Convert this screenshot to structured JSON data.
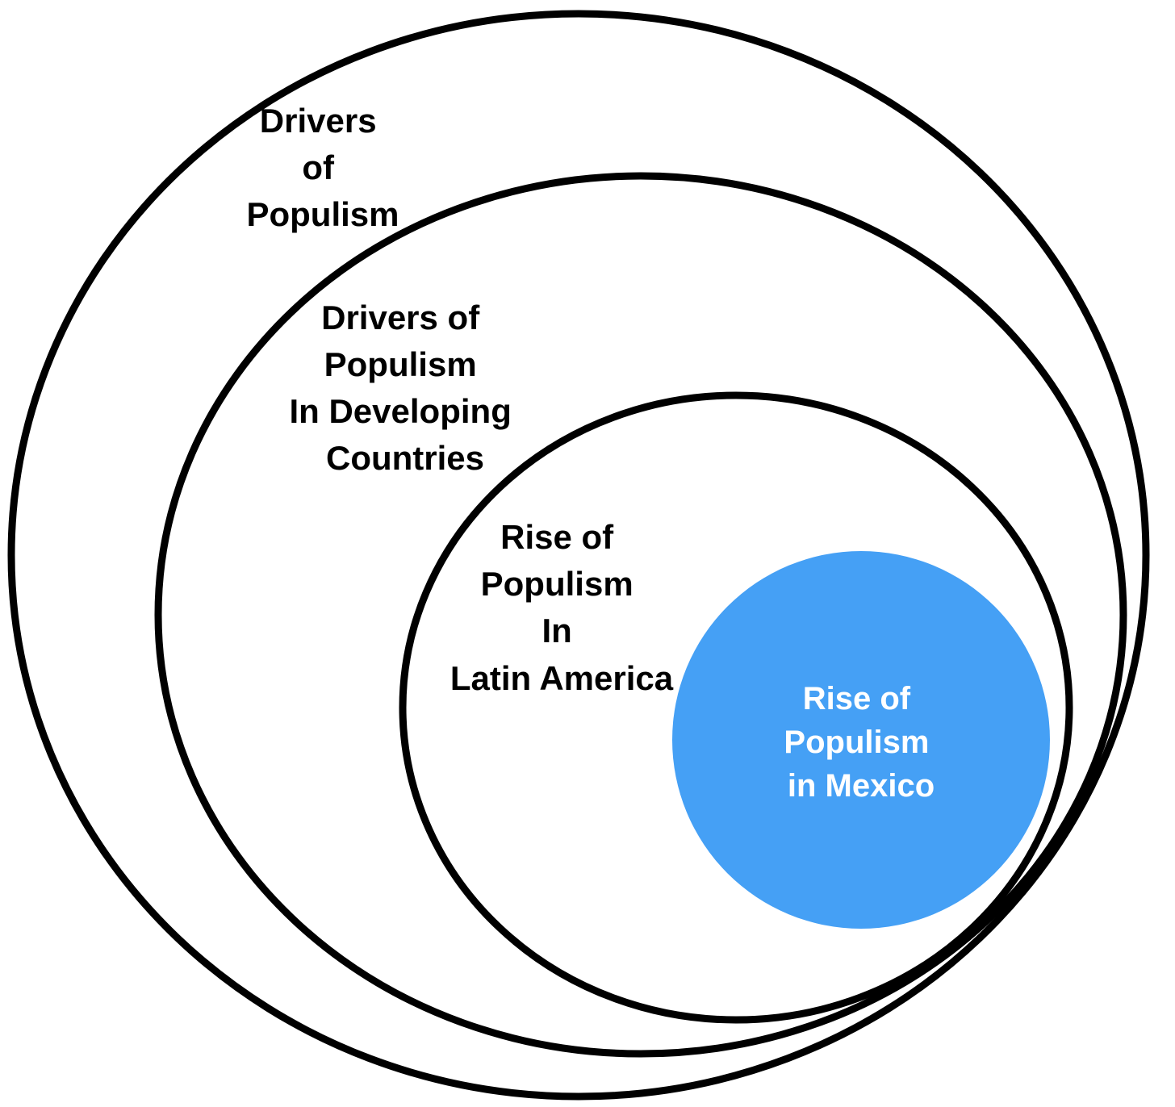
{
  "diagram": {
    "colors": {
      "outline": "#000000",
      "inner_fill": "#45A0F5",
      "inner_text": "#FFFFFF",
      "label_text": "#000000"
    },
    "levels": [
      {
        "lines": [
          "Drivers",
          "of",
          "Populism"
        ]
      },
      {
        "lines": [
          "Drivers of",
          "Populism",
          "In Developing",
          "Countries"
        ]
      },
      {
        "lines": [
          "Rise of",
          "Populism",
          "In",
          "Latin America"
        ]
      },
      {
        "lines": [
          "Rise of",
          "Populism",
          "in Mexico"
        ]
      }
    ]
  }
}
